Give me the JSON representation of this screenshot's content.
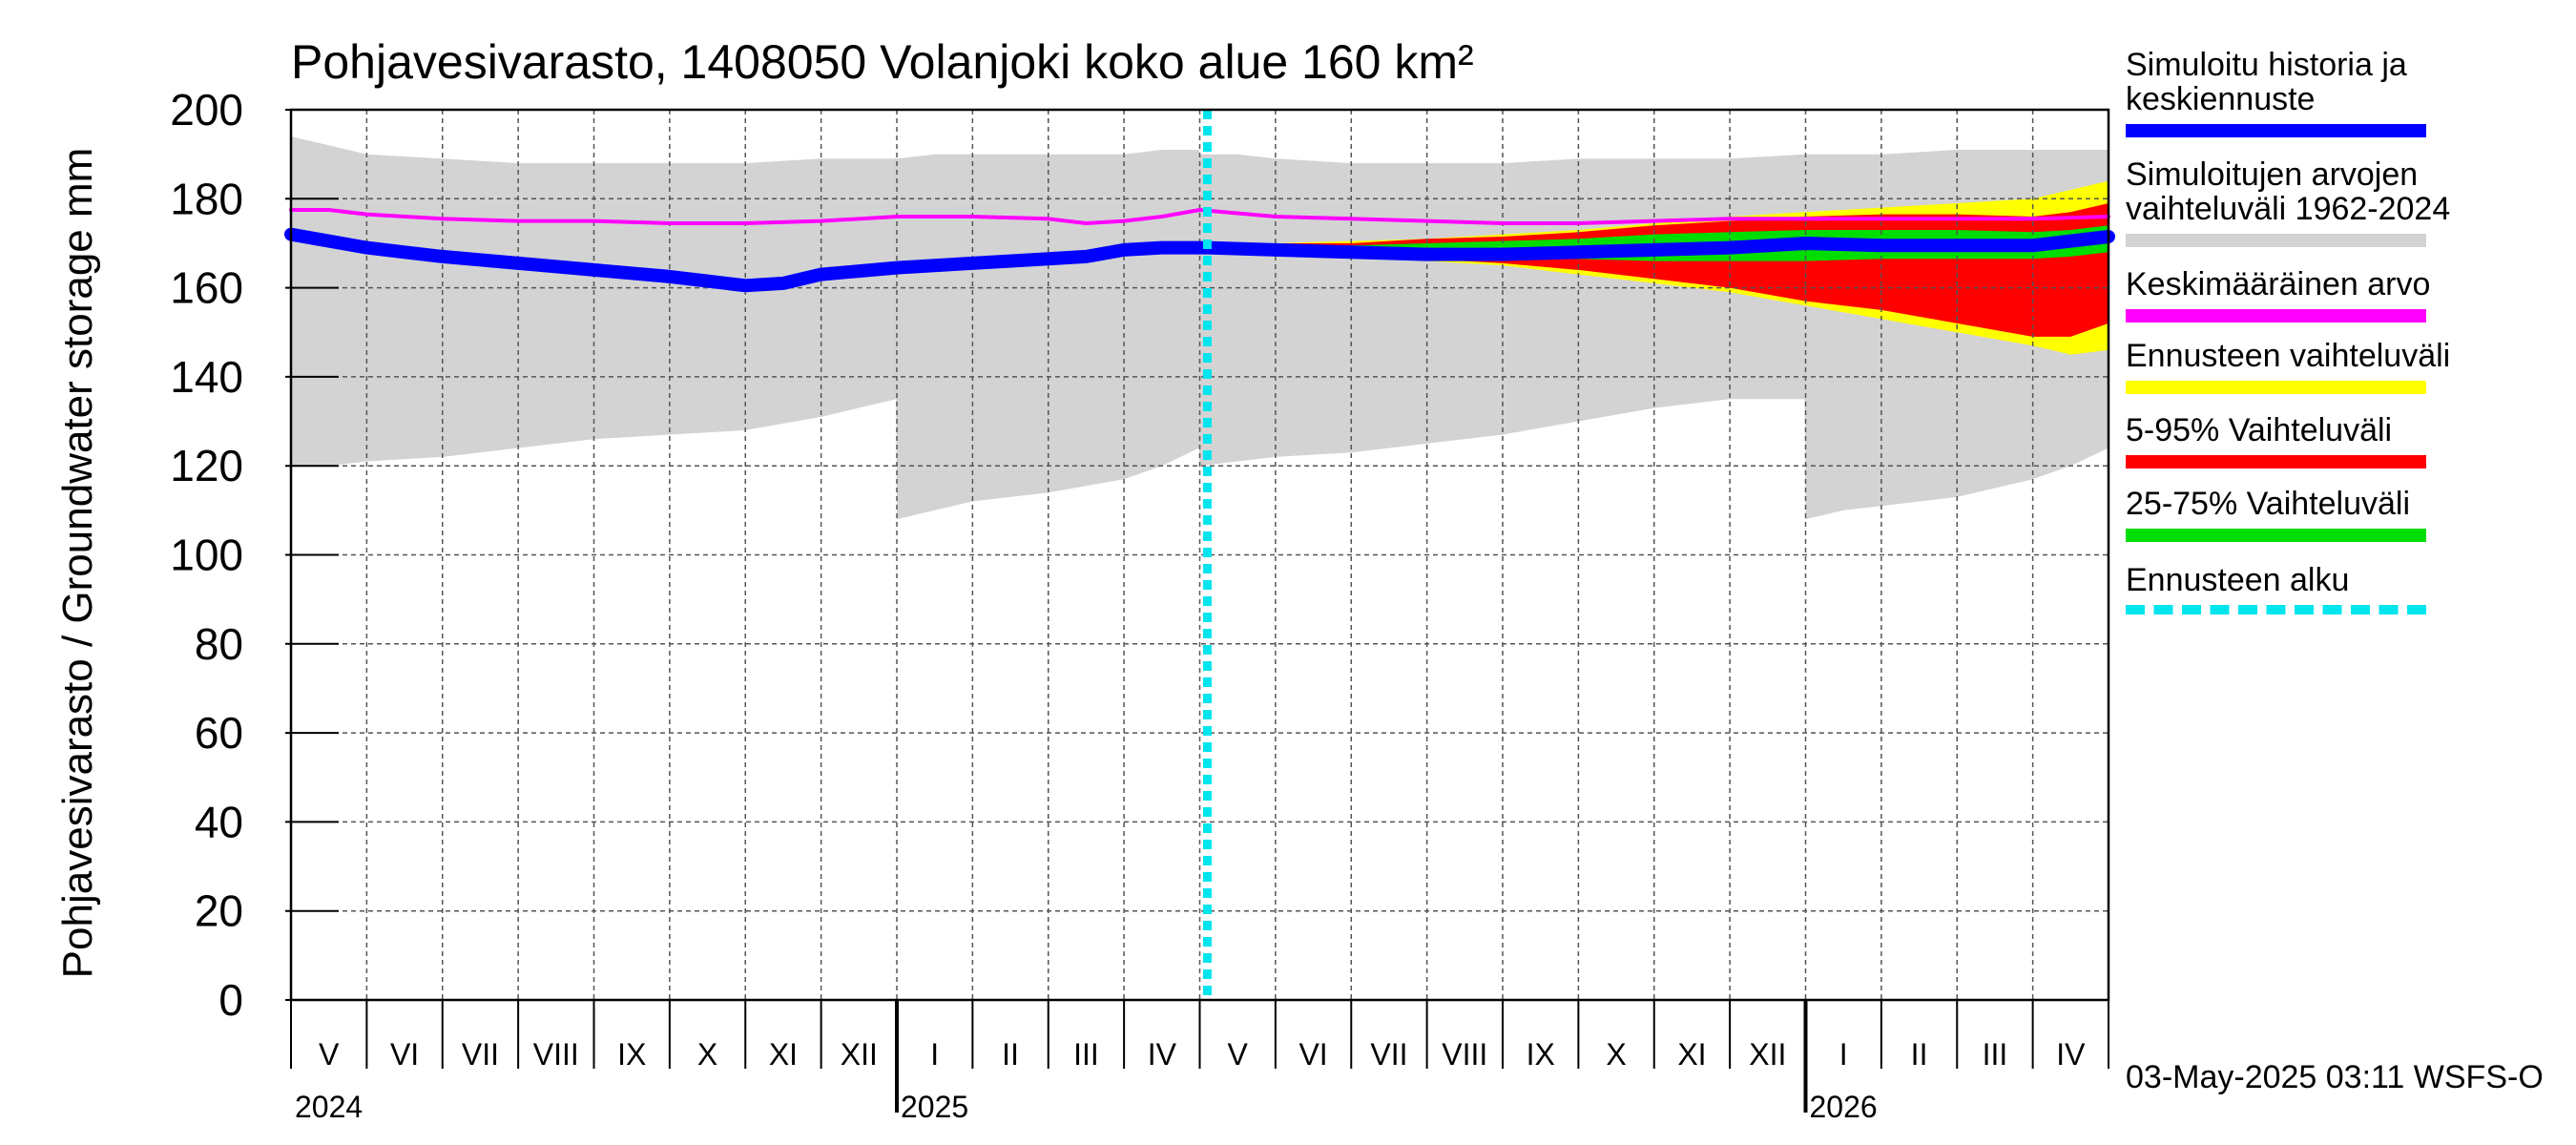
{
  "chart_data": {
    "type": "area",
    "title": "Pohjavesivarasto, 1408050 Volanjoki koko alue 160 km²",
    "ylabel": "Pohjavesivarasto / Groundwater storage   mm",
    "ylim": [
      0,
      200
    ],
    "yticks": [
      0,
      20,
      40,
      60,
      80,
      100,
      120,
      140,
      160,
      180,
      200
    ],
    "xlim_months": [
      0,
      24
    ],
    "month_labels": [
      "V",
      "VI",
      "VII",
      "VIII",
      "IX",
      "X",
      "XI",
      "XII",
      "I",
      "II",
      "III",
      "IV",
      "V",
      "VI",
      "VII",
      "VIII",
      "IX",
      "X",
      "XI",
      "XII",
      "I",
      "II",
      "III",
      "IV"
    ],
    "year_labels": [
      {
        "label": "2024",
        "month_index": 0
      },
      {
        "label": "2025",
        "month_index": 8
      },
      {
        "label": "2026",
        "month_index": 20
      }
    ],
    "forecast_start_month": 12.1,
    "series": [
      {
        "name": "Simuloitujen arvojen vaihteluväli 1962-2024",
        "kind": "band",
        "color": "#d3d3d3",
        "x": [
          0,
          0.5,
          1,
          2,
          3,
          4,
          5,
          6,
          7,
          7.99,
          8,
          8.5,
          9,
          10,
          11,
          11.5,
          11.99,
          12,
          12.5,
          13,
          14,
          15,
          16,
          17,
          18,
          19,
          19.99,
          20,
          20.5,
          21,
          22,
          23,
          23.5,
          24
        ],
        "upper": [
          194,
          192,
          190,
          189,
          188,
          188,
          188,
          188,
          189,
          189,
          189,
          190,
          190,
          190,
          190,
          191,
          191,
          190,
          190,
          189,
          188,
          188,
          188,
          189,
          189,
          189,
          190,
          190,
          190,
          190,
          191,
          191,
          191,
          191
        ],
        "lower": [
          120,
          120,
          121,
          122,
          124,
          126,
          127,
          128,
          131,
          135,
          108,
          110,
          112,
          114,
          117,
          120,
          124,
          120,
          121,
          122,
          123,
          125,
          127,
          130,
          133,
          135,
          135,
          108,
          110,
          111,
          113,
          117,
          120,
          124
        ]
      },
      {
        "name": "Ennusteen vaihteluväli",
        "kind": "band",
        "color": "#ffff00",
        "x": [
          12.1,
          13,
          14,
          15,
          16,
          17,
          18,
          19,
          20,
          21,
          22,
          23,
          23.5,
          24
        ],
        "upper": [
          169,
          170,
          170.5,
          171,
          172,
          173,
          174.5,
          176,
          177,
          178,
          179,
          180,
          182,
          184
        ],
        "lower": [
          169,
          168,
          167,
          166,
          165,
          163,
          161,
          159,
          156,
          153,
          150,
          147,
          145,
          146
        ]
      },
      {
        "name": "5-95% Vaihteluväli",
        "kind": "band",
        "color": "#ff0000",
        "x": [
          12.1,
          13,
          14,
          15,
          16,
          17,
          18,
          19,
          20,
          21,
          22,
          23,
          23.5,
          24
        ],
        "upper": [
          169,
          170,
          170,
          171,
          171.5,
          172.5,
          174,
          175,
          176,
          176.5,
          176.5,
          176,
          177,
          179
        ],
        "lower": [
          169,
          168,
          167.5,
          166.5,
          165.5,
          164,
          162,
          160,
          157,
          155,
          152,
          149,
          149,
          152
        ]
      },
      {
        "name": "25-75% Vaihteluväli",
        "kind": "band",
        "color": "#00dd00",
        "x": [
          12.1,
          13,
          14,
          15,
          16,
          17,
          18,
          19,
          20,
          21,
          22,
          23,
          23.5,
          24
        ],
        "upper": [
          169,
          169.5,
          169.5,
          170,
          170.5,
          171,
          172,
          172.5,
          173,
          173,
          173,
          172.5,
          173,
          174
        ],
        "lower": [
          169,
          168.5,
          168,
          167.5,
          167,
          166.5,
          166,
          166,
          166,
          166.5,
          166.5,
          166.5,
          167,
          168
        ]
      },
      {
        "name": "Keskimääräinen arvo",
        "kind": "line",
        "color": "#ff00ff",
        "x": [
          0,
          0.5,
          1,
          2,
          3,
          4,
          5,
          6,
          7,
          8,
          9,
          10,
          10.5,
          11,
          11.5,
          12,
          13,
          14,
          15,
          16,
          17,
          18,
          19,
          20,
          21,
          22,
          23,
          24
        ],
        "values": [
          177.5,
          177.5,
          176.5,
          175.5,
          175,
          175,
          174.5,
          174.5,
          175,
          176,
          176,
          175.5,
          174.5,
          175,
          176,
          177.5,
          176,
          175.5,
          175,
          174.5,
          174.5,
          175,
          175.5,
          175.5,
          175.5,
          175.5,
          175.5,
          176
        ]
      },
      {
        "name": "Simuloitu historia ja keskiennuste",
        "kind": "line",
        "color": "#0000ff",
        "x": [
          0,
          0.5,
          1,
          1.5,
          2,
          3,
          4,
          5,
          5.5,
          6,
          6.5,
          7,
          8,
          9,
          10,
          10.5,
          11,
          11.5,
          12,
          12.1,
          13,
          14,
          15,
          16,
          17,
          18,
          19,
          20,
          21,
          22,
          23,
          24
        ],
        "values": [
          172,
          170.5,
          169,
          168,
          167,
          165.5,
          164,
          162.5,
          161.5,
          160.5,
          161,
          163,
          164.5,
          165.5,
          166.5,
          167,
          168.5,
          169,
          169,
          169,
          168.5,
          168,
          167.5,
          167.5,
          168,
          168.5,
          169,
          170,
          169.5,
          169.5,
          169.5,
          171.5
        ]
      }
    ]
  },
  "legend": {
    "items": [
      {
        "label": "Simuloitu historia ja\nkeskiennuste",
        "color": "#0000ff"
      },
      {
        "label": "Simuloitujen arvojen\nvaihteluväli 1962-2024",
        "color": "#d3d3d3"
      },
      {
        "label": "Keskimääräinen arvo",
        "color": "#ff00ff"
      },
      {
        "label": "Ennusteen vaihteluväli",
        "color": "#ffff00"
      },
      {
        "label": "5-95% Vaihteluväli",
        "color": "#ff0000"
      },
      {
        "label": "25-75% Vaihteluväli",
        "color": "#00dd00"
      },
      {
        "label": "Ennusteen alku",
        "color": "#00e5ee"
      }
    ]
  },
  "footer": {
    "timestamp": "03-May-2025 03:11 WSFS-O"
  }
}
